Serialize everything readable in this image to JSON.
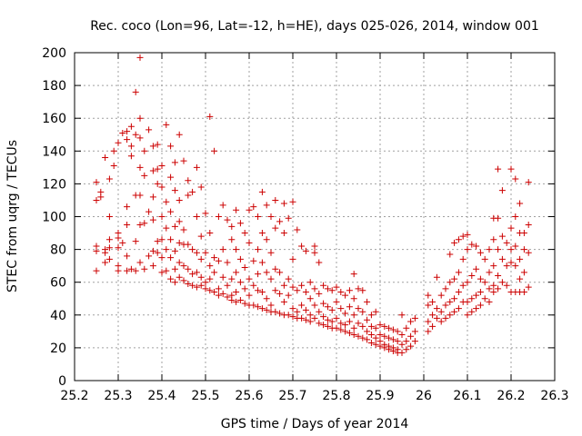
{
  "chart_data": {
    "type": "scatter",
    "title": "Rec. coco (Lon=96, Lat=-12, h=HE), days 025-026, 2014, window 001",
    "xlabel": "GPS time / Days of year 2014",
    "ylabel": "STEC from uqrg / TECUs",
    "xlim": [
      25.2,
      26.3
    ],
    "ylim": [
      0,
      200
    ],
    "xticks": [
      "25.2",
      "25.3",
      "25.4",
      "25.5",
      "25.6",
      "25.7",
      "25.8",
      "25.9",
      "26",
      "26.1",
      "26.2",
      "26.3"
    ],
    "yticks": [
      "0",
      "20",
      "40",
      "60",
      "80",
      "100",
      "120",
      "140",
      "160",
      "180",
      "200"
    ],
    "grid": true,
    "marker": "+",
    "color": "#cc0000",
    "points": [
      [
        25.25,
        121
      ],
      [
        25.25,
        110
      ],
      [
        25.25,
        82
      ],
      [
        25.25,
        79
      ],
      [
        25.25,
        67
      ],
      [
        25.26,
        115
      ],
      [
        25.26,
        112
      ],
      [
        25.27,
        136
      ],
      [
        25.27,
        80
      ],
      [
        25.27,
        78
      ],
      [
        25.27,
        72
      ],
      [
        25.28,
        123
      ],
      [
        25.28,
        100
      ],
      [
        25.28,
        86
      ],
      [
        25.28,
        81
      ],
      [
        25.28,
        74
      ],
      [
        25.29,
        140
      ],
      [
        25.29,
        131
      ],
      [
        25.3,
        145
      ],
      [
        25.3,
        90
      ],
      [
        25.3,
        87
      ],
      [
        25.3,
        81
      ],
      [
        25.3,
        70
      ],
      [
        25.3,
        67
      ],
      [
        25.31,
        151
      ],
      [
        25.31,
        84
      ],
      [
        25.32,
        152
      ],
      [
        25.32,
        147
      ],
      [
        25.32,
        106
      ],
      [
        25.32,
        95
      ],
      [
        25.32,
        76
      ],
      [
        25.32,
        67
      ],
      [
        25.33,
        155
      ],
      [
        25.33,
        143
      ],
      [
        25.33,
        137
      ],
      [
        25.33,
        68
      ],
      [
        25.34,
        176
      ],
      [
        25.34,
        150
      ],
      [
        25.34,
        113
      ],
      [
        25.34,
        85
      ],
      [
        25.34,
        67
      ],
      [
        25.35,
        197
      ],
      [
        25.35,
        160
      ],
      [
        25.35,
        148
      ],
      [
        25.35,
        130
      ],
      [
        25.35,
        113
      ],
      [
        25.35,
        95
      ],
      [
        25.35,
        72
      ],
      [
        25.36,
        140
      ],
      [
        25.36,
        125
      ],
      [
        25.36,
        96
      ],
      [
        25.36,
        68
      ],
      [
        25.37,
        153
      ],
      [
        25.37,
        103
      ],
      [
        25.37,
        76
      ],
      [
        25.38,
        143
      ],
      [
        25.38,
        128
      ],
      [
        25.38,
        112
      ],
      [
        25.38,
        98
      ],
      [
        25.38,
        79
      ],
      [
        25.38,
        70
      ],
      [
        25.39,
        144
      ],
      [
        25.39,
        129
      ],
      [
        25.39,
        120
      ],
      [
        25.39,
        85
      ],
      [
        25.39,
        78
      ],
      [
        25.4,
        131
      ],
      [
        25.4,
        118
      ],
      [
        25.4,
        100
      ],
      [
        25.4,
        86
      ],
      [
        25.4,
        75
      ],
      [
        25.4,
        66
      ],
      [
        25.41,
        156
      ],
      [
        25.41,
        109
      ],
      [
        25.41,
        93
      ],
      [
        25.41,
        80
      ],
      [
        25.41,
        67
      ],
      [
        25.42,
        143
      ],
      [
        25.42,
        124
      ],
      [
        25.42,
        103
      ],
      [
        25.42,
        86
      ],
      [
        25.42,
        75
      ],
      [
        25.42,
        62
      ],
      [
        25.43,
        133
      ],
      [
        25.43,
        116
      ],
      [
        25.43,
        94
      ],
      [
        25.43,
        79
      ],
      [
        25.43,
        68
      ],
      [
        25.43,
        60
      ],
      [
        25.44,
        150
      ],
      [
        25.44,
        110
      ],
      [
        25.44,
        97
      ],
      [
        25.44,
        84
      ],
      [
        25.44,
        72
      ],
      [
        25.44,
        63
      ],
      [
        25.45,
        134
      ],
      [
        25.45,
        92
      ],
      [
        25.45,
        83
      ],
      [
        25.45,
        70
      ],
      [
        25.45,
        61
      ],
      [
        25.46,
        122
      ],
      [
        25.46,
        113
      ],
      [
        25.46,
        83
      ],
      [
        25.46,
        68
      ],
      [
        25.46,
        59
      ],
      [
        25.47,
        115
      ],
      [
        25.47,
        80
      ],
      [
        25.47,
        65
      ],
      [
        25.47,
        58
      ],
      [
        25.48,
        130
      ],
      [
        25.48,
        100
      ],
      [
        25.48,
        78
      ],
      [
        25.48,
        66
      ],
      [
        25.48,
        57
      ],
      [
        25.49,
        118
      ],
      [
        25.49,
        88
      ],
      [
        25.49,
        74
      ],
      [
        25.49,
        63
      ],
      [
        25.49,
        58
      ],
      [
        25.5,
        102
      ],
      [
        25.5,
        78
      ],
      [
        25.5,
        60
      ],
      [
        25.5,
        56
      ],
      [
        25.51,
        161
      ],
      [
        25.51,
        90
      ],
      [
        25.51,
        70
      ],
      [
        25.51,
        62
      ],
      [
        25.51,
        55
      ],
      [
        25.52,
        140
      ],
      [
        25.52,
        75
      ],
      [
        25.52,
        66
      ],
      [
        25.52,
        54
      ],
      [
        25.53,
        100
      ],
      [
        25.53,
        73
      ],
      [
        25.53,
        56
      ],
      [
        25.53,
        52
      ],
      [
        25.54,
        107
      ],
      [
        25.54,
        80
      ],
      [
        25.54,
        63
      ],
      [
        25.54,
        53
      ],
      [
        25.55,
        98
      ],
      [
        25.55,
        72
      ],
      [
        25.55,
        58
      ],
      [
        25.55,
        51
      ],
      [
        25.56,
        94
      ],
      [
        25.56,
        86
      ],
      [
        25.56,
        62
      ],
      [
        25.56,
        52
      ],
      [
        25.56,
        49
      ],
      [
        25.57,
        104
      ],
      [
        25.57,
        80
      ],
      [
        25.57,
        66
      ],
      [
        25.57,
        54
      ],
      [
        25.57,
        48
      ],
      [
        25.58,
        96
      ],
      [
        25.58,
        74
      ],
      [
        25.58,
        60
      ],
      [
        25.58,
        49
      ],
      [
        25.59,
        90
      ],
      [
        25.59,
        69
      ],
      [
        25.59,
        56
      ],
      [
        25.59,
        47
      ],
      [
        25.6,
        104
      ],
      [
        25.6,
        84
      ],
      [
        25.6,
        62
      ],
      [
        25.6,
        52
      ],
      [
        25.6,
        46
      ],
      [
        25.61,
        106
      ],
      [
        25.61,
        73
      ],
      [
        25.61,
        58
      ],
      [
        25.61,
        46
      ],
      [
        25.62,
        100
      ],
      [
        25.62,
        80
      ],
      [
        25.62,
        65
      ],
      [
        25.62,
        55
      ],
      [
        25.62,
        45
      ],
      [
        25.63,
        115
      ],
      [
        25.63,
        90
      ],
      [
        25.63,
        72
      ],
      [
        25.63,
        54
      ],
      [
        25.63,
        44
      ],
      [
        25.64,
        107
      ],
      [
        25.64,
        86
      ],
      [
        25.64,
        66
      ],
      [
        25.64,
        50
      ],
      [
        25.64,
        43
      ],
      [
        25.65,
        100
      ],
      [
        25.65,
        78
      ],
      [
        25.65,
        62
      ],
      [
        25.65,
        46
      ],
      [
        25.65,
        42
      ],
      [
        25.66,
        110
      ],
      [
        25.66,
        93
      ],
      [
        25.66,
        68
      ],
      [
        25.66,
        55
      ],
      [
        25.66,
        42
      ],
      [
        25.67,
        97
      ],
      [
        25.67,
        66
      ],
      [
        25.67,
        53
      ],
      [
        25.67,
        41
      ],
      [
        25.68,
        108
      ],
      [
        25.68,
        90
      ],
      [
        25.68,
        58
      ],
      [
        25.68,
        48
      ],
      [
        25.68,
        40
      ],
      [
        25.69,
        99
      ],
      [
        25.69,
        62
      ],
      [
        25.69,
        52
      ],
      [
        25.69,
        40
      ],
      [
        25.7,
        109
      ],
      [
        25.7,
        74
      ],
      [
        25.7,
        57
      ],
      [
        25.7,
        44
      ],
      [
        25.7,
        39
      ],
      [
        25.71,
        92
      ],
      [
        25.71,
        55
      ],
      [
        25.71,
        42
      ],
      [
        25.71,
        38
      ],
      [
        25.72,
        82
      ],
      [
        25.72,
        58
      ],
      [
        25.72,
        46
      ],
      [
        25.72,
        38
      ],
      [
        25.73,
        79
      ],
      [
        25.73,
        54
      ],
      [
        25.73,
        43
      ],
      [
        25.73,
        37
      ],
      [
        25.74,
        60
      ],
      [
        25.74,
        50
      ],
      [
        25.74,
        40
      ],
      [
        25.74,
        36
      ],
      [
        25.75,
        82
      ],
      [
        25.75,
        78
      ],
      [
        25.75,
        56
      ],
      [
        25.75,
        46
      ],
      [
        25.75,
        38
      ],
      [
        25.76,
        72
      ],
      [
        25.76,
        53
      ],
      [
        25.76,
        42
      ],
      [
        25.76,
        35
      ],
      [
        25.77,
        58
      ],
      [
        25.77,
        47
      ],
      [
        25.77,
        39
      ],
      [
        25.77,
        34
      ],
      [
        25.78,
        56
      ],
      [
        25.78,
        45
      ],
      [
        25.78,
        37
      ],
      [
        25.78,
        33
      ],
      [
        25.79,
        55
      ],
      [
        25.79,
        43
      ],
      [
        25.79,
        36
      ],
      [
        25.79,
        32
      ],
      [
        25.8,
        57
      ],
      [
        25.8,
        48
      ],
      [
        25.8,
        38
      ],
      [
        25.8,
        32
      ],
      [
        25.81,
        54
      ],
      [
        25.81,
        44
      ],
      [
        25.81,
        35
      ],
      [
        25.81,
        31
      ],
      [
        25.82,
        52
      ],
      [
        25.82,
        41
      ],
      [
        25.82,
        34
      ],
      [
        25.82,
        30
      ],
      [
        25.83,
        55
      ],
      [
        25.83,
        45
      ],
      [
        25.83,
        36
      ],
      [
        25.83,
        29
      ],
      [
        25.84,
        65
      ],
      [
        25.84,
        50
      ],
      [
        25.84,
        40
      ],
      [
        25.84,
        32
      ],
      [
        25.84,
        28
      ],
      [
        25.85,
        56
      ],
      [
        25.85,
        44
      ],
      [
        25.85,
        35
      ],
      [
        25.85,
        27
      ],
      [
        25.86,
        55
      ],
      [
        25.86,
        42
      ],
      [
        25.86,
        33
      ],
      [
        25.86,
        26
      ],
      [
        25.87,
        48
      ],
      [
        25.87,
        37
      ],
      [
        25.87,
        30
      ],
      [
        25.87,
        25
      ],
      [
        25.88,
        40
      ],
      [
        25.88,
        33
      ],
      [
        25.88,
        28
      ],
      [
        25.88,
        23
      ],
      [
        25.89,
        42
      ],
      [
        25.89,
        32
      ],
      [
        25.89,
        26
      ],
      [
        25.89,
        22
      ],
      [
        25.9,
        34
      ],
      [
        25.9,
        28
      ],
      [
        25.9,
        24
      ],
      [
        25.9,
        21
      ],
      [
        25.91,
        33
      ],
      [
        25.91,
        27
      ],
      [
        25.91,
        22
      ],
      [
        25.91,
        20
      ],
      [
        25.92,
        32
      ],
      [
        25.92,
        26
      ],
      [
        25.92,
        21
      ],
      [
        25.92,
        19
      ],
      [
        25.93,
        31
      ],
      [
        25.93,
        25
      ],
      [
        25.93,
        20
      ],
      [
        25.93,
        18
      ],
      [
        25.94,
        30
      ],
      [
        25.94,
        24
      ],
      [
        25.94,
        19
      ],
      [
        25.94,
        17
      ],
      [
        25.95,
        40
      ],
      [
        25.95,
        28
      ],
      [
        25.95,
        22
      ],
      [
        25.95,
        17
      ],
      [
        25.96,
        32
      ],
      [
        25.96,
        24
      ],
      [
        25.96,
        19
      ],
      [
        25.97,
        36
      ],
      [
        25.97,
        27
      ],
      [
        25.97,
        21
      ],
      [
        25.98,
        38
      ],
      [
        25.98,
        30
      ],
      [
        25.98,
        24
      ],
      [
        26.01,
        52
      ],
      [
        26.01,
        46
      ],
      [
        26.01,
        36
      ],
      [
        26.01,
        30
      ],
      [
        26.02,
        48
      ],
      [
        26.02,
        40
      ],
      [
        26.02,
        33
      ],
      [
        26.03,
        63
      ],
      [
        26.03,
        44
      ],
      [
        26.03,
        38
      ],
      [
        26.04,
        52
      ],
      [
        26.04,
        42
      ],
      [
        26.04,
        36
      ],
      [
        26.05,
        56
      ],
      [
        26.05,
        46
      ],
      [
        26.05,
        38
      ],
      [
        26.06,
        77
      ],
      [
        26.06,
        60
      ],
      [
        26.06,
        48
      ],
      [
        26.06,
        40
      ],
      [
        26.07,
        84
      ],
      [
        26.07,
        62
      ],
      [
        26.07,
        50
      ],
      [
        26.07,
        42
      ],
      [
        26.08,
        86
      ],
      [
        26.08,
        66
      ],
      [
        26.08,
        54
      ],
      [
        26.08,
        44
      ],
      [
        26.09,
        88
      ],
      [
        26.09,
        74
      ],
      [
        26.09,
        58
      ],
      [
        26.09,
        48
      ],
      [
        26.1,
        89
      ],
      [
        26.1,
        80
      ],
      [
        26.1,
        60
      ],
      [
        26.1,
        48
      ],
      [
        26.1,
        40
      ],
      [
        26.11,
        83
      ],
      [
        26.11,
        64
      ],
      [
        26.11,
        50
      ],
      [
        26.11,
        42
      ],
      [
        26.12,
        82
      ],
      [
        26.12,
        68
      ],
      [
        26.12,
        52
      ],
      [
        26.12,
        44
      ],
      [
        26.13,
        78
      ],
      [
        26.13,
        62
      ],
      [
        26.13,
        54
      ],
      [
        26.13,
        46
      ],
      [
        26.14,
        74
      ],
      [
        26.14,
        60
      ],
      [
        26.14,
        50
      ],
      [
        26.15,
        80
      ],
      [
        26.15,
        66
      ],
      [
        26.15,
        56
      ],
      [
        26.15,
        48
      ],
      [
        26.16,
        99
      ],
      [
        26.16,
        86
      ],
      [
        26.16,
        70
      ],
      [
        26.16,
        58
      ],
      [
        26.16,
        54
      ],
      [
        26.17,
        129
      ],
      [
        26.17,
        99
      ],
      [
        26.17,
        80
      ],
      [
        26.17,
        64
      ],
      [
        26.17,
        56
      ],
      [
        26.18,
        116
      ],
      [
        26.18,
        88
      ],
      [
        26.18,
        74
      ],
      [
        26.18,
        60
      ],
      [
        26.19,
        84
      ],
      [
        26.19,
        70
      ],
      [
        26.19,
        58
      ],
      [
        26.2,
        129
      ],
      [
        26.2,
        93
      ],
      [
        26.2,
        80
      ],
      [
        26.2,
        72
      ],
      [
        26.2,
        54
      ],
      [
        26.21,
        123
      ],
      [
        26.21,
        100
      ],
      [
        26.21,
        82
      ],
      [
        26.21,
        70
      ],
      [
        26.21,
        54
      ],
      [
        26.22,
        108
      ],
      [
        26.22,
        90
      ],
      [
        26.22,
        74
      ],
      [
        26.22,
        62
      ],
      [
        26.22,
        54
      ],
      [
        26.23,
        90
      ],
      [
        26.23,
        80
      ],
      [
        26.23,
        66
      ],
      [
        26.23,
        54
      ],
      [
        26.24,
        121
      ],
      [
        26.24,
        95
      ],
      [
        26.24,
        78
      ],
      [
        26.24,
        57
      ]
    ]
  }
}
